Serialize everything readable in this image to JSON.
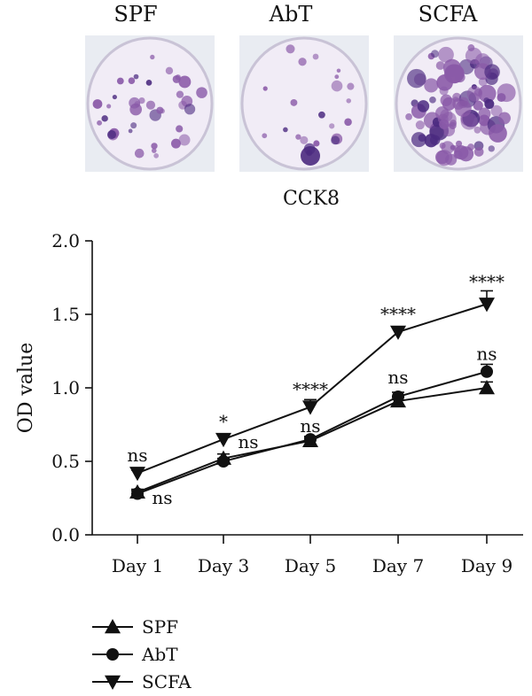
{
  "plates": [
    {
      "label": "SPF",
      "density": "sparse"
    },
    {
      "label": "AbT",
      "density": "low"
    },
    {
      "label": "SCFA",
      "density": "dense"
    }
  ],
  "colors": {
    "stain": "#8a5aa8",
    "stain_dark": "#4b2a80",
    "plate_bg": "#f1ecf6",
    "line": "#111111"
  },
  "chart_data": {
    "type": "line",
    "title": "CCK8",
    "ylabel": "OD value",
    "xlabel": "",
    "categories": [
      "Day 1",
      "Day 3",
      "Day 5",
      "Day 7",
      "Day 9"
    ],
    "ylim": [
      0.0,
      2.0
    ],
    "yticks": [
      "0.0",
      "0.5",
      "1.0",
      "1.5",
      "2.0"
    ],
    "series": [
      {
        "name": "SPF",
        "marker": "triangle-up",
        "values": [
          0.29,
          0.52,
          0.64,
          0.91,
          1.0
        ],
        "errors": [
          0.02,
          0.03,
          0.02,
          0.03,
          0.04
        ]
      },
      {
        "name": "AbT",
        "marker": "circle",
        "values": [
          0.28,
          0.5,
          0.65,
          0.94,
          1.11
        ],
        "errors": [
          0.02,
          0.02,
          0.02,
          0.03,
          0.05
        ]
      },
      {
        "name": "SCFA",
        "marker": "triangle-down",
        "values": [
          0.42,
          0.65,
          0.87,
          1.38,
          1.57
        ],
        "errors": [
          0.02,
          0.03,
          0.05,
          0.03,
          0.09
        ]
      }
    ],
    "annotations": [
      {
        "text": "ns",
        "category": "Day 1",
        "y": 0.5
      },
      {
        "text": "ns",
        "category": "Day 1",
        "y": 0.21,
        "side": "right"
      },
      {
        "text": "*",
        "category": "Day 3",
        "y": 0.73
      },
      {
        "text": "ns",
        "category": "Day 3",
        "y": 0.59,
        "side": "right"
      },
      {
        "text": "****",
        "category": "Day 5",
        "y": 0.95
      },
      {
        "text": "ns",
        "category": "Day 5",
        "y": 0.7
      },
      {
        "text": "****",
        "category": "Day 7",
        "y": 1.46
      },
      {
        "text": "ns",
        "category": "Day 7",
        "y": 1.03
      },
      {
        "text": "****",
        "category": "Day 9",
        "y": 1.68
      },
      {
        "text": "ns",
        "category": "Day 9",
        "y": 1.19
      }
    ],
    "legend_position": "bottom-left"
  }
}
